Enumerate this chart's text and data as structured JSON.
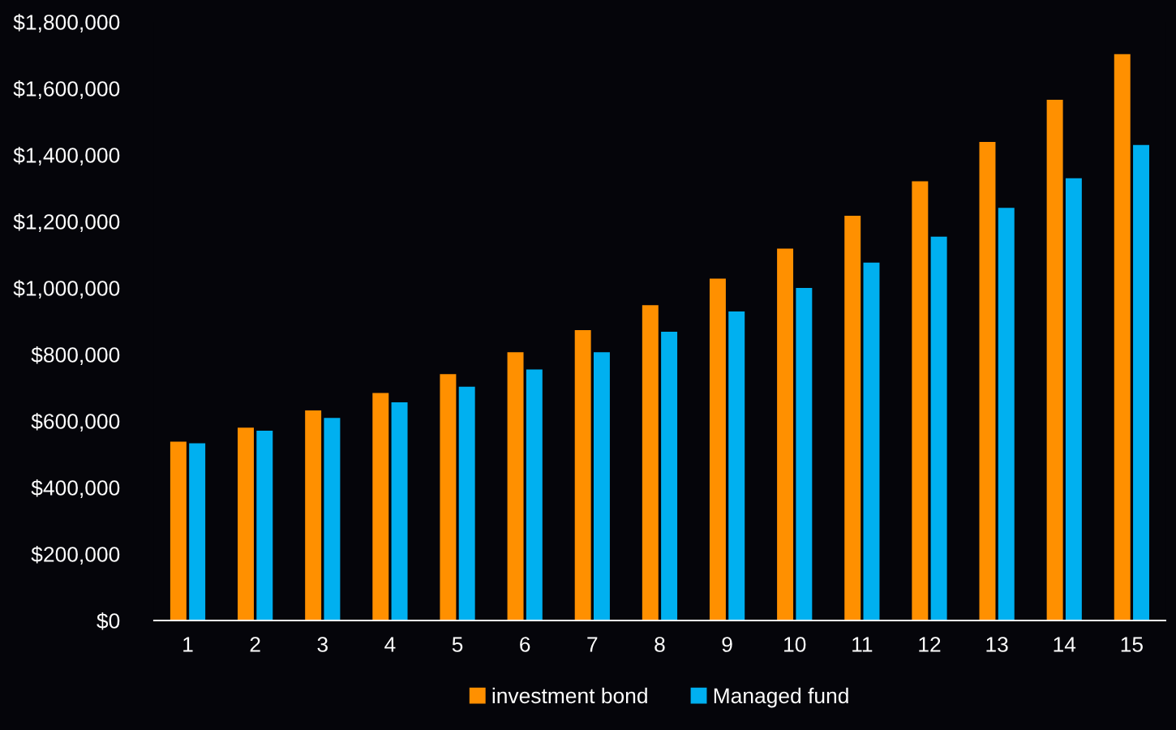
{
  "chart_data": {
    "type": "bar",
    "categories": [
      "1",
      "2",
      "3",
      "4",
      "5",
      "6",
      "7",
      "8",
      "9",
      "10",
      "11",
      "12",
      "13",
      "14",
      "15"
    ],
    "series": [
      {
        "name": "investment bond",
        "color": "#ff9000",
        "values": [
          538000,
          580000,
          632000,
          684000,
          741000,
          807000,
          873000,
          948000,
          1028000,
          1118000,
          1217000,
          1321000,
          1439000,
          1566000,
          1703000
        ]
      },
      {
        "name": "Managed fund",
        "color": "#00b0f0",
        "values": [
          533000,
          571000,
          609000,
          656000,
          703000,
          755000,
          807000,
          868000,
          929000,
          1000000,
          1076000,
          1154000,
          1241000,
          1330000,
          1430000
        ]
      }
    ],
    "ylim": [
      0,
      1800000
    ],
    "yticks": [
      {
        "value": 0,
        "label": "$0"
      },
      {
        "value": 200000,
        "label": "$200,000"
      },
      {
        "value": 400000,
        "label": "$400,000"
      },
      {
        "value": 600000,
        "label": "$600,000"
      },
      {
        "value": 800000,
        "label": "$800,000"
      },
      {
        "value": 1000000,
        "label": "$1,000,000"
      },
      {
        "value": 1200000,
        "label": "$1,200,000"
      },
      {
        "value": 1400000,
        "label": "$1,400,000"
      },
      {
        "value": 1600000,
        "label": "$1,600,000"
      },
      {
        "value": 1800000,
        "label": "$1,800,000"
      }
    ],
    "grid": false,
    "legend": "bottom"
  }
}
